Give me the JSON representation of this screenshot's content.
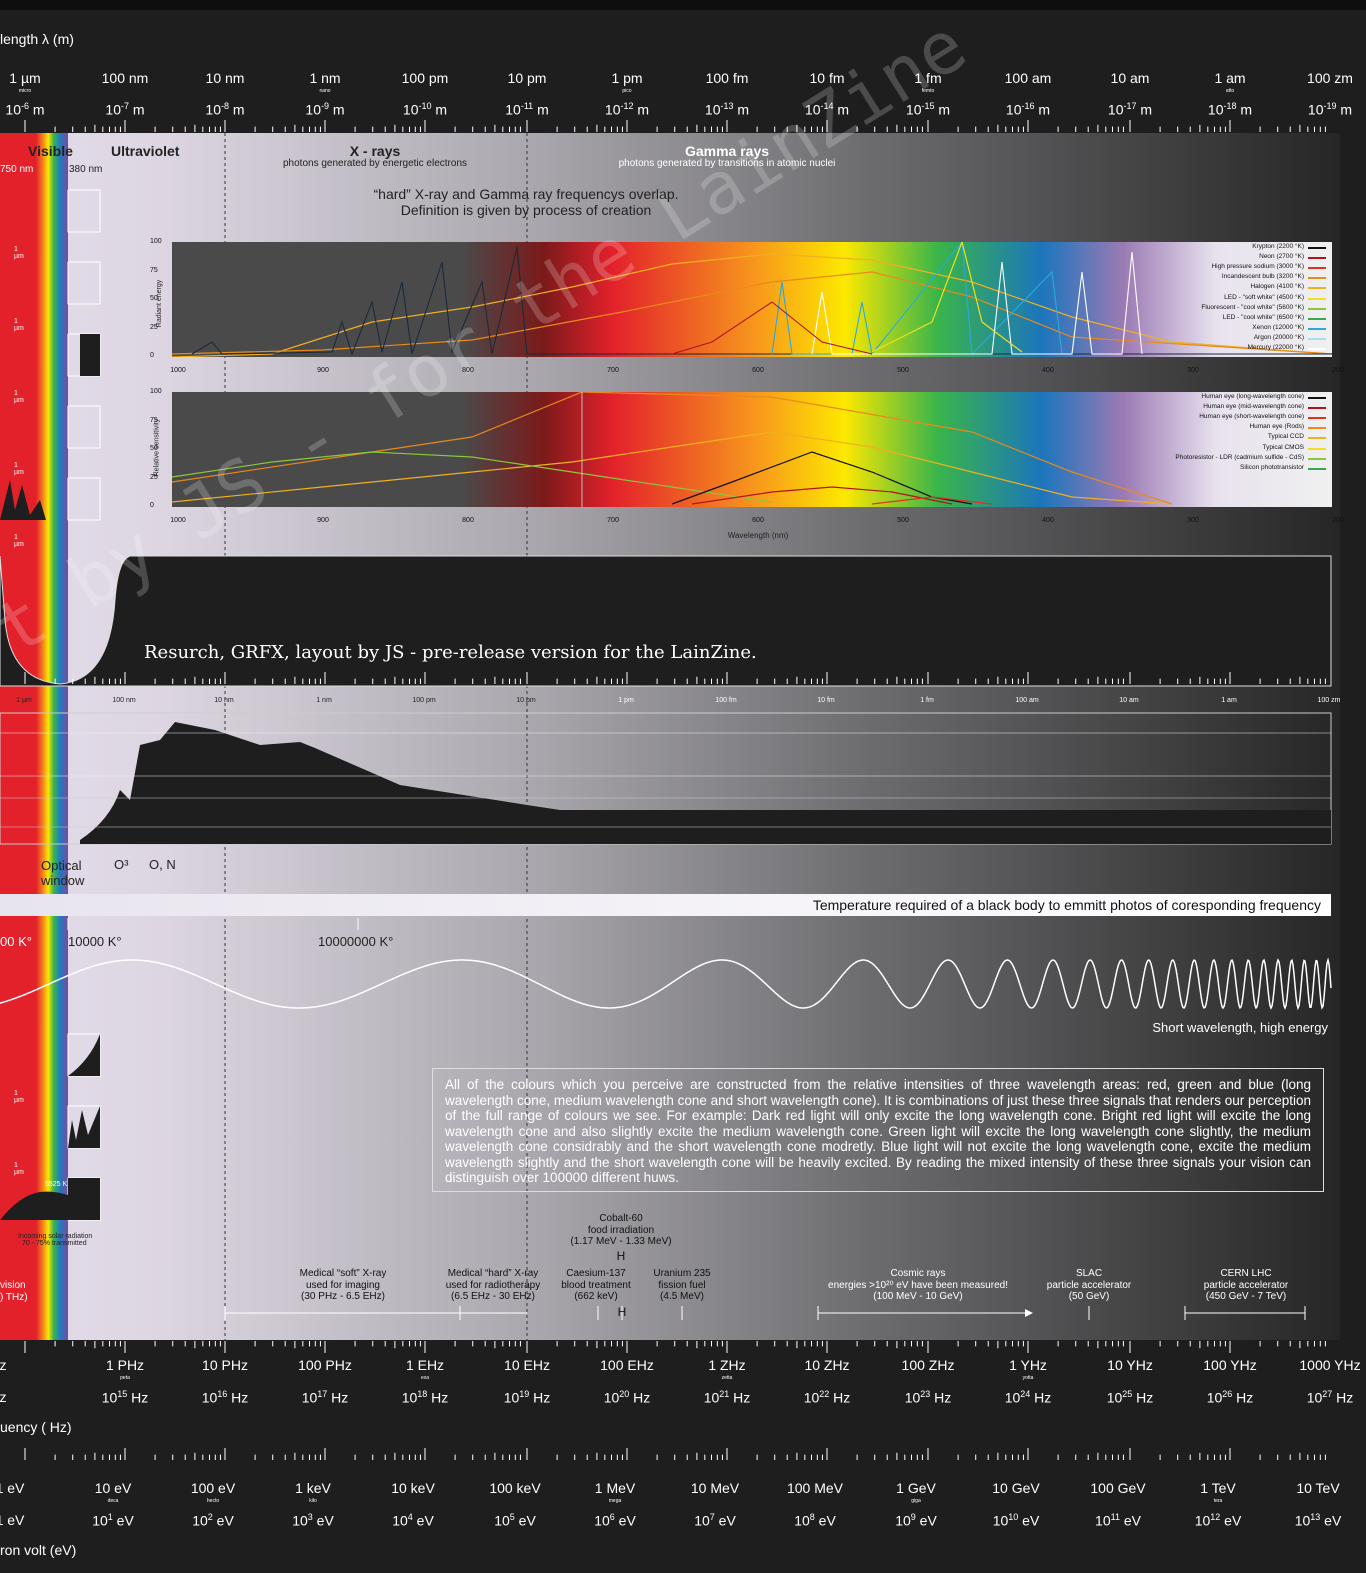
{
  "axes": {
    "wavelength_title": "length λ (m)",
    "wavelength_names": [
      "1 µm",
      "100 nm",
      "10 nm",
      "1 nm",
      "100 pm",
      "10 pm",
      "1 pm",
      "100 fm",
      "10 fm",
      "1 fm",
      "100 am",
      "10 am",
      "1 am",
      "100 zm"
    ],
    "wavelength_prefixes": [
      "micro",
      "",
      "",
      "nano",
      "",
      "",
      "pico",
      "",
      "",
      "femto",
      "",
      "",
      "atto",
      ""
    ],
    "wavelength_powers": [
      "-6",
      "-7",
      "-8",
      "-9",
      "-10",
      "-11",
      "-12",
      "-13",
      "-14",
      "-15",
      "-16",
      "-17",
      "-18",
      "-19"
    ],
    "freq_title": "uency ( Hz)",
    "freq_names": [
      "z",
      "1 PHz",
      "10 PHz",
      "100 PHz",
      "1 EHz",
      "10 EHz",
      "100 EHz",
      "1 ZHz",
      "10 ZHz",
      "100 ZHz",
      "1 YHz",
      "10 YHz",
      "100 YHz",
      "1000 YHz"
    ],
    "freq_prefixes": [
      "",
      "peta",
      "",
      "",
      "exa",
      "",
      "",
      "zetta",
      "",
      "",
      "yotta",
      "",
      "",
      ""
    ],
    "freq_powers": [
      "",
      "15",
      "16",
      "17",
      "18",
      "19",
      "20",
      "21",
      "22",
      "23",
      "24",
      "25",
      "26",
      "27"
    ],
    "energy_title": "ron volt (eV)",
    "energy_names": [
      "1 eV",
      "10 eV",
      "100 eV",
      "1 keV",
      "10 keV",
      "100 keV",
      "1 MeV",
      "10 MeV",
      "100 MeV",
      "1 GeV",
      "10 GeV",
      "100 GeV",
      "1 TeV",
      "10 TeV"
    ],
    "energy_prefixes": [
      "",
      "deca",
      "hecto",
      "kilo",
      "",
      "",
      "mega",
      "",
      "",
      "giga",
      "",
      "",
      "tera",
      ""
    ],
    "energy_powers": [
      "0",
      "1",
      "2",
      "3",
      "4",
      "5",
      "6",
      "7",
      "8",
      "9",
      "10",
      "11",
      "12",
      "13"
    ],
    "mid_scale": [
      "1 µm",
      "100 nm",
      "10 nm",
      "1 nm",
      "100 pm",
      "10 pm",
      "1 pm",
      "100 fm",
      "10 fm",
      "1 fm",
      "100 am",
      "10 am",
      "1 am",
      "100 zm"
    ]
  },
  "regions": {
    "visible": "Visible",
    "uv": "Ultraviolet",
    "xray": "X - rays",
    "xray_sub": "photons generated by energetic electrons",
    "gamma": "Gamma rays",
    "gamma_sub": "photons generated by transitions in atomic nuclei",
    "nm750": "750 nm",
    "nm380": "380 nm",
    "overlap1": "“hard” X-ray and Gamma ray frequencys overlap.",
    "overlap2": "Definition is given by process of creation"
  },
  "chart1": {
    "ylabel": "Radiant energy",
    "yticks": [
      "100",
      "75",
      "50",
      "25",
      "0"
    ],
    "xticks": [
      "1000",
      "900",
      "800",
      "700",
      "600",
      "500",
      "400",
      "300",
      "200"
    ],
    "legend": [
      {
        "name": "Krypton (2200 °K)",
        "color": "#111111"
      },
      {
        "name": "Neon (2700 °K)",
        "color": "#b3121a"
      },
      {
        "name": "High pressure sodium (3000 °K)",
        "color": "#e0321c"
      },
      {
        "name": "Incandescent bulb (3200 °K)",
        "color": "#e88a1a"
      },
      {
        "name": "Halogen (4100 °K)",
        "color": "#f0b020"
      },
      {
        "name": "LED - \"soft white\" (4500 °K)",
        "color": "#f0e020"
      },
      {
        "name": "Fluorescent - \"cool white\" (5600 °K)",
        "color": "#8cc63f"
      },
      {
        "name": "LED - \"cool white\" (6500 °K)",
        "color": "#3aa84a"
      },
      {
        "name": "Xenon (12000 °K)",
        "color": "#29a9e0"
      },
      {
        "name": "Argon (20000 °K)",
        "color": "#a6dff2"
      },
      {
        "name": "Mercury (22000 °K)",
        "color": "#ffffff"
      }
    ]
  },
  "chart2": {
    "ylabel": "Relative sensitivity",
    "yticks": [
      "100",
      "75",
      "50",
      "25",
      "0"
    ],
    "xticks": [
      "1000",
      "900",
      "800",
      "700",
      "600",
      "500",
      "400",
      "300",
      "200"
    ],
    "xlabel": "Wavelength (nm)",
    "legend": [
      {
        "name": "Human eye (long-wavelength cone)",
        "color": "#111111"
      },
      {
        "name": "Human eye (mid-wavelength cone)",
        "color": "#b3121a"
      },
      {
        "name": "Human eye (short-wavelength cone)",
        "color": "#e0321c"
      },
      {
        "name": "Human eye (Rods)",
        "color": "#e88a1a"
      },
      {
        "name": "Typical CCD",
        "color": "#f0b020"
      },
      {
        "name": "Typical CMOS",
        "color": "#f0e020"
      },
      {
        "name": "Photoresistor - LDR (cadmium sulfide - CdS)",
        "color": "#8cc63f"
      },
      {
        "name": "Silicon phototransistor",
        "color": "#3aa84a"
      }
    ]
  },
  "credit": "Resurch, GRFX, layout by JS - pre-release version for the LainZine.",
  "watermark": "t by JS - for the LainZine",
  "atmos": {
    "optical": "Optical",
    "window": "window",
    "o3": "O³",
    "on": "O, N"
  },
  "temperature": {
    "bar": "Temperature required of a black body to emmitt photos of coresponding frequency",
    "t1": "00 K°",
    "t2": "10000 K°",
    "t3": "10000000 K°"
  },
  "wave_caption": "Short wavelength, high energy",
  "note": "All of the colours which you perceive are constructed from the relative intensities of three wavelength areas: red, green and blue (long wavelength cone, medium wavelength cone and short wavelength cone). It is combinations of just these three signals that renders our perception of the full range of colours we see. For example: Dark red light will only excite the long wavelength cone. Bright red light will excite the long wavelength cone and also slightly excite the medium wavelength cone. Green light will excite the long wavelength cone slightly, the medium wavelength cone considrably and the short wavelength cone modretly. Blue light will not excite the long wavelength cone, excite the medium wavelength slightly and the short wavelength cone will be heavily excited. By reading the mixed intensity of these three signals your vision can distinguish over 100000 different huws.",
  "side": {
    "um": "1 µm",
    "k5525": "5525 K",
    "solar1": "Incoming solar radiation",
    "solar2": "70 - 75% transmitted",
    "vision1": "vision",
    "vision2": ") THz)"
  },
  "apps": {
    "soft1": "Medical “soft” X-ray",
    "soft2": "used for imaging",
    "soft3": "(30 PHz - 6.5 EHz)",
    "hard1": "Medical “hard” X-ray",
    "hard2": "used for radiotherapy",
    "hard3": "(6.5 EHz - 30 EHz)",
    "cs1": "Caesium-137",
    "cs2": "blood treatment",
    "cs3": "(662 keV)",
    "co1": "Cobalt-60",
    "co2": "food irradiation",
    "co3": "(1.17 MeV - 1.33 MeV)",
    "u1": "Uranium 235",
    "u2": "fission fuel",
    "u3": "(4.5 MeV)",
    "cr1": "Cosmic rays",
    "cr2": "energies >10²⁰ eV have been measured!",
    "cr3": "(100 MeV - 10 GeV)",
    "slac1": "SLAC",
    "slac2": "particle accelerator",
    "slac3": "(50 GeV)",
    "lhc1": "CERN LHC",
    "lhc2": "particle accelerator",
    "lhc3": "(450 GeV - 7 TeV)"
  },
  "colors": {
    "background": "#1e1e1e",
    "visible_red": "#e3212b",
    "uv_band": "#e4dcea",
    "gamma_dark": "#2b2b2b"
  }
}
